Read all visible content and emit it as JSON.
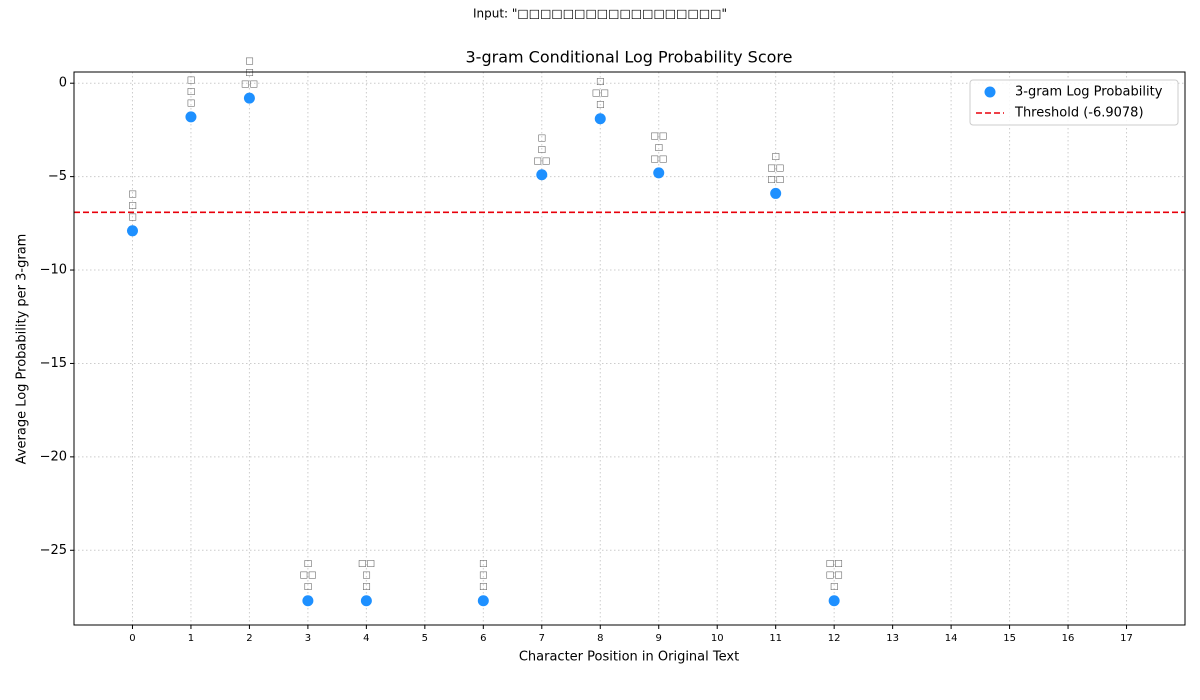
{
  "chart_data": {
    "type": "scatter",
    "suptitle": "Input: \"□□□□□□□□□□□□□□□□□□\"",
    "title": "3-gram Conditional Log Probability Score",
    "x_label": "Character Position in Original Text",
    "y_label": "Average Log Probability per 3-gram",
    "xlim": [
      -1,
      18
    ],
    "ylim": [
      -29.0,
      0.6
    ],
    "xticks": [
      0,
      1,
      2,
      3,
      4,
      5,
      6,
      7,
      8,
      9,
      10,
      11,
      12,
      13,
      14,
      15,
      16,
      17
    ],
    "yticks": [
      {
        "value": -25,
        "label": "−25"
      },
      {
        "value": -20,
        "label": "−20"
      },
      {
        "value": -15,
        "label": "−15"
      },
      {
        "value": -10,
        "label": "−10"
      },
      {
        "value": -5,
        "label": "−5"
      },
      0
    ],
    "grid": true,
    "legend_position": "upper right",
    "series": [
      {
        "name": "3-gram Log Probability",
        "color": "#1e90ff",
        "x": [
          0,
          1,
          2,
          3,
          4,
          6,
          7,
          8,
          9,
          11,
          12
        ],
        "values": [
          -7.9,
          -1.8,
          -0.8,
          -27.7,
          -27.7,
          -27.7,
          -4.9,
          -1.9,
          -4.8,
          -5.9,
          -27.7
        ],
        "point_labels": [
          [
            "□",
            "□",
            "□"
          ],
          [
            "□",
            "□",
            "□"
          ],
          [
            "□",
            "□",
            "□□"
          ],
          [
            "□",
            "□□",
            "□"
          ],
          [
            "□□",
            "□",
            "□"
          ],
          [
            "□",
            "□",
            "□"
          ],
          [
            "□",
            "□",
            "□□"
          ],
          [
            "□",
            "□□",
            "□"
          ],
          [
            "□□",
            "□",
            "□□"
          ],
          [
            "□",
            "□□",
            "□□"
          ],
          [
            "□□",
            "□□",
            "□"
          ]
        ]
      }
    ],
    "threshold": {
      "name": "Threshold (-6.9078)",
      "value": -6.9078,
      "color": "#e8000b"
    }
  }
}
